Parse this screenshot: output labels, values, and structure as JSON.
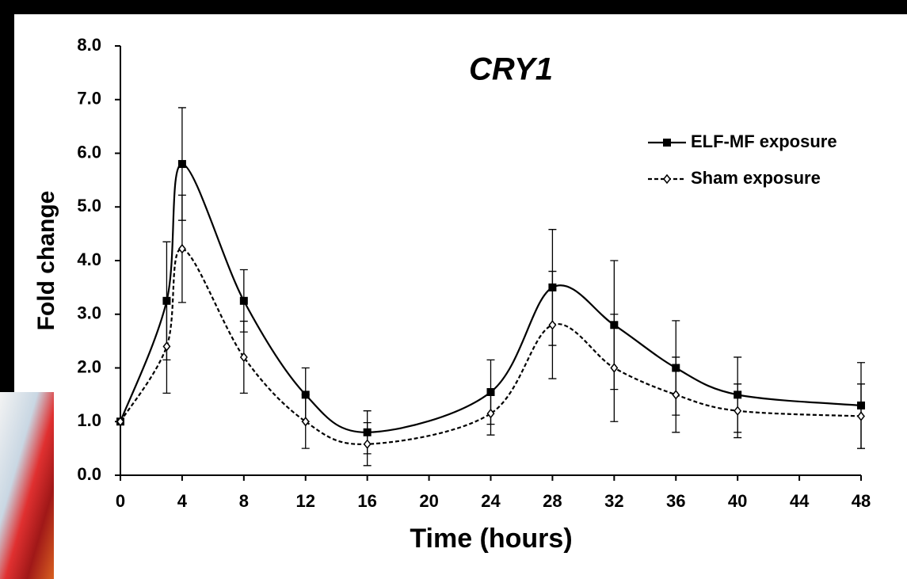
{
  "chart_data": {
    "type": "line",
    "title": "CRY1",
    "x_label": "Time (hours)",
    "y_label": "Fold change",
    "x": [
      0,
      3,
      4,
      8,
      12,
      16,
      24,
      28,
      32,
      36,
      40,
      48
    ],
    "series": [
      {
        "name": "ELF-MF exposure",
        "color": "#000000",
        "marker": "square",
        "dash": false,
        "values": [
          1.0,
          3.25,
          5.8,
          3.25,
          1.5,
          0.8,
          1.55,
          3.5,
          2.8,
          2.0,
          1.5,
          1.3
        ],
        "errors": [
          0,
          1.1,
          1.05,
          0.58,
          0.5,
          0.4,
          0.6,
          1.08,
          1.2,
          0.88,
          0.7,
          0.8
        ]
      },
      {
        "name": "Sham exposure",
        "color": "#000000",
        "marker": "diamond",
        "dash": true,
        "values": [
          1.0,
          2.4,
          4.22,
          2.2,
          1.0,
          0.58,
          1.15,
          2.8,
          2.0,
          1.5,
          1.2,
          1.1
        ],
        "errors": [
          0,
          0.87,
          1.0,
          0.67,
          0.5,
          0.4,
          0.4,
          1.0,
          1.0,
          0.7,
          0.5,
          0.6
        ]
      }
    ],
    "xlim": [
      0,
      48
    ],
    "xticks": [
      0,
      4,
      8,
      12,
      16,
      20,
      24,
      28,
      32,
      36,
      40,
      44,
      48
    ],
    "ylim": [
      0,
      8
    ],
    "yticks": [
      {
        "value": 0,
        "label": "0.0"
      },
      {
        "value": 1,
        "label": "1.0"
      },
      {
        "value": 2,
        "label": "2.0"
      },
      {
        "value": 3,
        "label": "3.0"
      },
      {
        "value": 4,
        "label": "4.0"
      },
      {
        "value": 5,
        "label": "5.0"
      },
      {
        "value": 6,
        "label": "6.0"
      },
      {
        "value": 7,
        "label": "7.0"
      },
      {
        "value": 8,
        "label": "8.0"
      }
    ],
    "legend": "upper right"
  }
}
